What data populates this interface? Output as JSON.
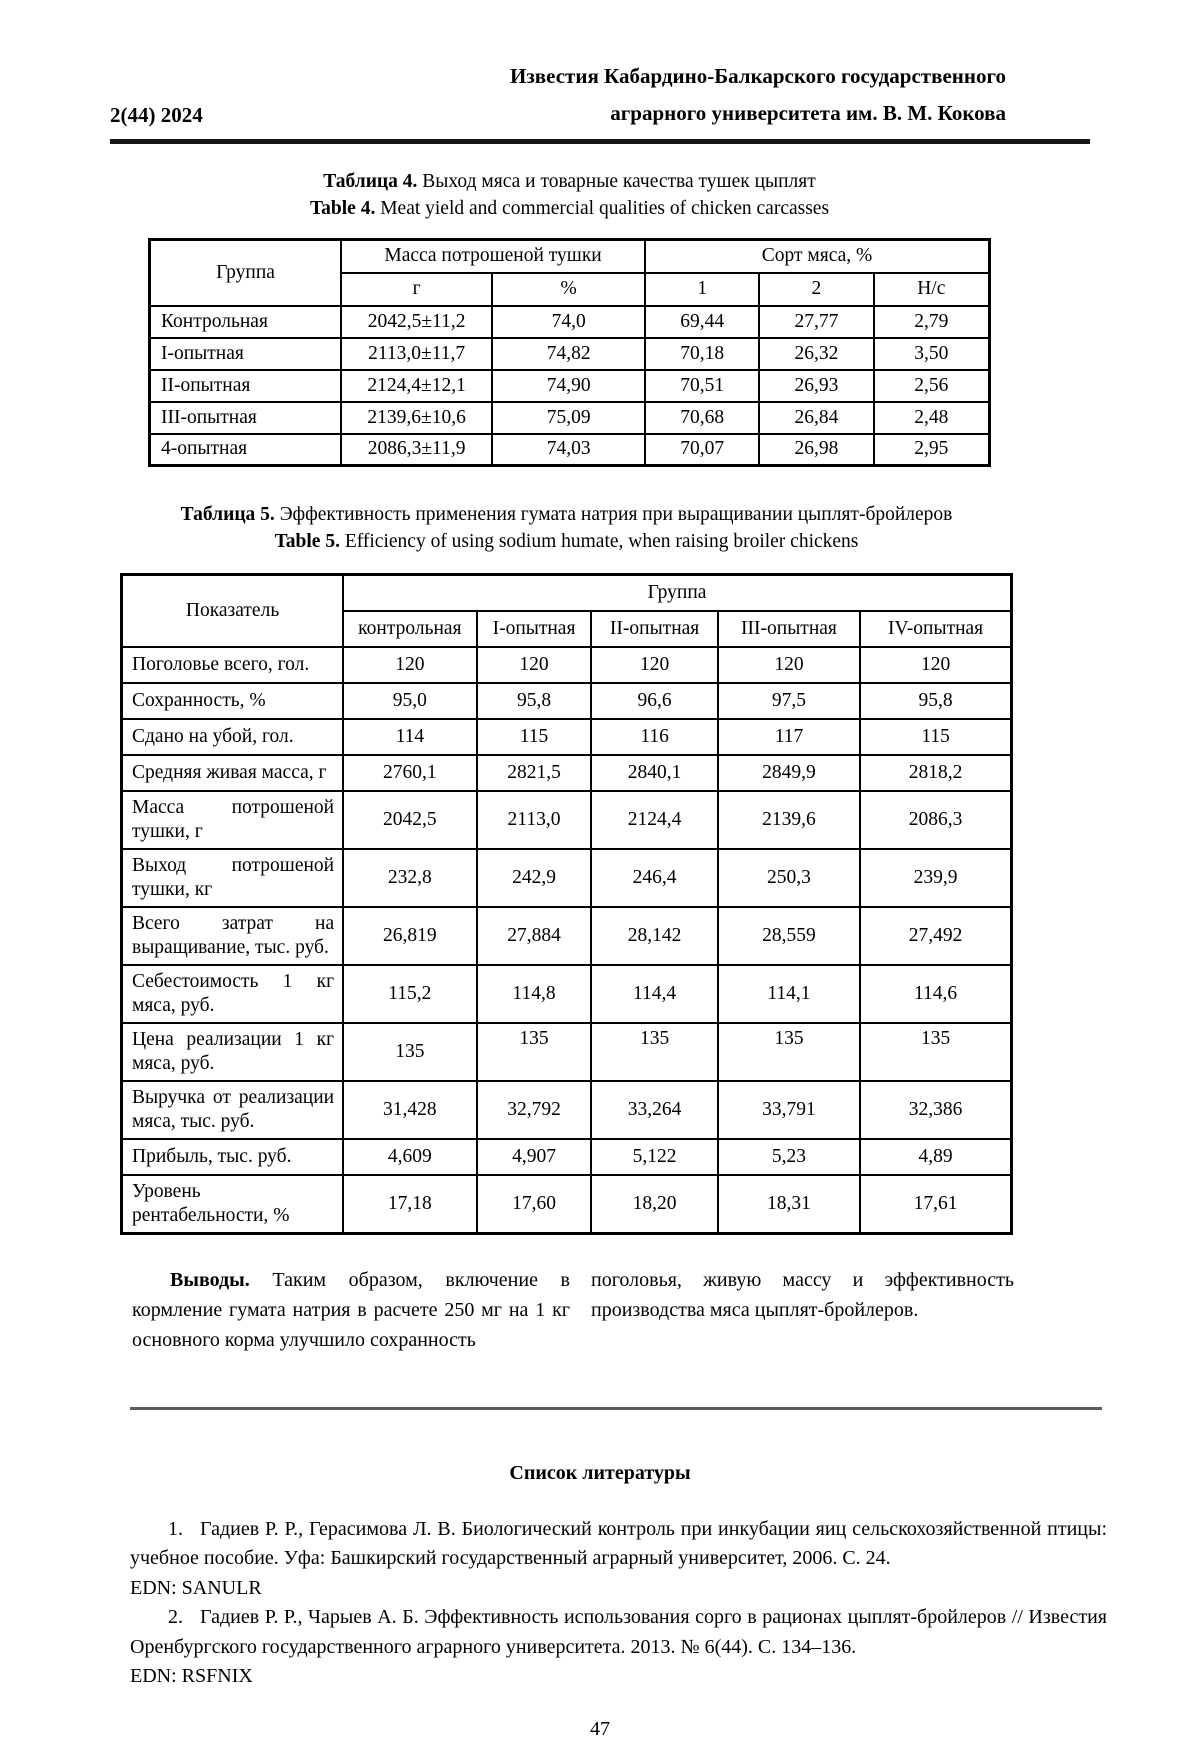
{
  "header": {
    "issue": "2(44) 2024",
    "journal_line1": "Известия Кабардино-Балкарского государственного",
    "journal_line2": "аграрного университета им. В. М. Кокова"
  },
  "table4": {
    "caption_ru_bold": "Таблица 4.",
    "caption_ru_rest": " Выход мяса и товарные качества тушек цыплят",
    "caption_en_bold": "Table 4.",
    "caption_en_rest": " Meat yield and commercial qualities of chicken carcasses",
    "col_group": "Группа",
    "col_mass": "Масса потрошеной тушки",
    "col_grade": "Сорт мяса, %",
    "sub_g": "г",
    "sub_pct": "%",
    "sub_1": "1",
    "sub_2": "2",
    "sub_nc": "Н/с",
    "rows": [
      {
        "group": "Контрольная",
        "values": [
          "2042,5±11,2",
          "74,0",
          "69,44",
          "27,77",
          "2,79"
        ]
      },
      {
        "group": "I-опытная",
        "values": [
          "2113,0±11,7",
          "74,82",
          "70,18",
          "26,32",
          "3,50"
        ]
      },
      {
        "group": "II-опытная",
        "values": [
          "2124,4±12,1",
          "74,90",
          "70,51",
          "26,93",
          "2,56"
        ]
      },
      {
        "group": "III-опытная",
        "values": [
          "2139,6±10,6",
          "75,09",
          "70,68",
          "26,84",
          "2,48"
        ]
      },
      {
        "group": "4-опытная",
        "values": [
          "2086,3±11,9",
          "74,03",
          "70,07",
          "26,98",
          "2,95"
        ]
      }
    ]
  },
  "table5": {
    "caption_ru_bold": "Таблица 5.",
    "caption_ru_rest": " Эффективность применения гумата натрия при выращивании цыплят-бройлеров",
    "caption_en_bold": "Table 5.",
    "caption_en_rest": " Efficiency of using sodium humate, when raising broiler chickens",
    "col_indicator": "Показатель",
    "col_group": "Группа",
    "subcols": [
      "контрольная",
      "I-опытная",
      "II-опытная",
      "III-опытная",
      "IV-опытная"
    ],
    "rows": [
      {
        "label": "Поголовье всего, гол.",
        "values": [
          "120",
          "120",
          "120",
          "120",
          "120"
        ]
      },
      {
        "label": "Сохранность, %",
        "values": [
          "95,0",
          "95,8",
          "96,6",
          "97,5",
          "95,8"
        ]
      },
      {
        "label": "Сдано на убой, гол.",
        "values": [
          "114",
          "115",
          "116",
          "117",
          "115"
        ]
      },
      {
        "label": "Средняя живая масса, г",
        "values": [
          "2760,1",
          "2821,5",
          "2840,1",
          "2849,9",
          "2818,2"
        ]
      },
      {
        "label": "Масса потрошеной тушки, г",
        "values": [
          "2042,5",
          "2113,0",
          "2124,4",
          "2139,6",
          "2086,3"
        ]
      },
      {
        "label": "Выход потрошеной тушки, кг",
        "values": [
          "232,8",
          "242,9",
          "246,4",
          "250,3",
          "239,9"
        ]
      },
      {
        "label": "Всего затрат на выращивание, тыс. руб.",
        "values": [
          "26,819",
          "27,884",
          "28,142",
          "28,559",
          "27,492"
        ]
      },
      {
        "label": "Себестоимость 1 кг мяса, руб.",
        "values": [
          "115,2",
          "114,8",
          "114,4",
          "114,1",
          "114,6"
        ]
      },
      {
        "label": "Цена реализации 1 кг мяса, руб.",
        "values": [
          "135",
          "135",
          "135",
          "135",
          "135"
        ]
      },
      {
        "label": "Выручка от реализации мяса, тыс. руб.",
        "values": [
          "31,428",
          "32,792",
          "33,264",
          "33,791",
          "32,386"
        ]
      },
      {
        "label": "Прибыль, тыс. руб.",
        "values": [
          "4,609",
          "4,907",
          "5,122",
          "5,23",
          "4,89"
        ]
      },
      {
        "label": "Уровень рентабельности, %",
        "values": [
          "17,18",
          "17,60",
          "18,20",
          "18,31",
          "17,61"
        ]
      }
    ]
  },
  "conclusion": {
    "lead": "Выводы.",
    "col1_rest": " Таким образом, включение в кормление гумата натрия в расчете 250 мг на 1 кг основного корма улучшило сохранность",
    "col2": "поголовья, живую массу и эффективность производства мяса цыплят-бройлеров."
  },
  "references": {
    "heading": "Список литературы",
    "items": [
      {
        "num": "1.",
        "text": "Гадиев Р. Р., Герасимова Л. В. Биологический контроль при инкубации яиц сельскохозяйственной птицы: учебное пособие. Уфа: Башкирский государственный аграрный университет, 2006. С. 24.",
        "edn": "EDN: SANULR"
      },
      {
        "num": "2.",
        "text": "Гадиев Р. Р., Чарыев А. Б. Эффективность использования сорго в рационах цыплят-бройлеров // Известия Оренбургского государственного аграрного университета. 2013. № 6(44). С. 134–136.",
        "edn": "EDN: RSFNIX"
      }
    ]
  },
  "page_number": "47"
}
